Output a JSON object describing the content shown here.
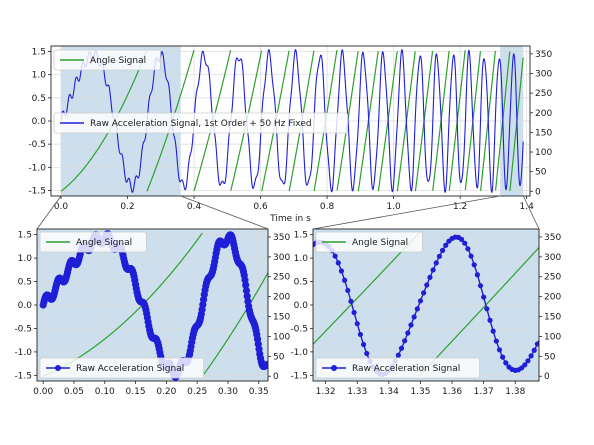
{
  "colors": {
    "angle": "#2ca02c",
    "accel": "#1f1fd6",
    "zoom_fill": "#cddfec",
    "grid": "#d9d9d9",
    "connector": "#555555"
  },
  "chart_data": [
    {
      "id": "top",
      "type": "line",
      "xlabel": "Time in s",
      "xlim": [
        -0.03,
        1.41
      ],
      "ylim": [
        -1.62,
        1.62
      ],
      "y2lim": [
        -12,
        370
      ],
      "xticks": [
        "0.0",
        "0.2",
        "0.4",
        "0.6",
        "0.8",
        "1.0",
        "1.2",
        "1.4"
      ],
      "yticks": [
        "-1.5",
        "-1.0",
        "-0.5",
        "0.0",
        "0.5",
        "1.0",
        "1.5"
      ],
      "y2ticks": [
        "0",
        "50",
        "100",
        "150",
        "200",
        "250",
        "300",
        "350"
      ],
      "highlight_spans": [
        [
          0.0,
          0.36
        ],
        [
          1.32,
          1.39
        ]
      ],
      "legend": [
        {
          "label": "Angle Signal",
          "series": "angle"
        },
        {
          "label": "Raw Acceleration Signal, 1st Order + 50 Hz Fixed",
          "series": "accel"
        }
      ],
      "legend_placement": "left",
      "grid": true
    },
    {
      "id": "bottom-left",
      "type": "line",
      "xlim": [
        -0.01,
        0.365
      ],
      "ylim": [
        -1.62,
        1.62
      ],
      "y2lim": [
        -12,
        370
      ],
      "xticks": [
        "0.00",
        "0.05",
        "0.10",
        "0.15",
        "0.20",
        "0.25",
        "0.30",
        "0.35"
      ],
      "yticks": [
        "-1.5",
        "-1.0",
        "-0.5",
        "0.0",
        "0.5",
        "1.0",
        "1.5"
      ],
      "y2ticks": [
        "0",
        "50",
        "100",
        "150",
        "200",
        "250",
        "300",
        "350"
      ],
      "legend": [
        {
          "label": "Angle Signal",
          "series": "angle"
        },
        {
          "label": "Raw Acceleration Signal",
          "series": "accel"
        }
      ],
      "grid": true
    },
    {
      "id": "bottom-right",
      "type": "line",
      "xlim": [
        1.316,
        1.3875
      ],
      "ylim": [
        -1.62,
        1.62
      ],
      "y2lim": [
        -12,
        370
      ],
      "xticks": [
        "1.32",
        "1.33",
        "1.34",
        "1.35",
        "1.36",
        "1.37",
        "1.38"
      ],
      "yticks": [
        "-1.5",
        "-1.0",
        "-0.5",
        "0.0",
        "0.5",
        "1.0",
        "1.5"
      ],
      "y2ticks": [
        "0",
        "50",
        "100",
        "150",
        "200",
        "250",
        "300",
        "350"
      ],
      "legend": [
        {
          "label": "Angle Signal",
          "series": "angle"
        },
        {
          "label": "Raw Acceleration Signal",
          "series": "accel"
        }
      ],
      "grid": true
    }
  ]
}
